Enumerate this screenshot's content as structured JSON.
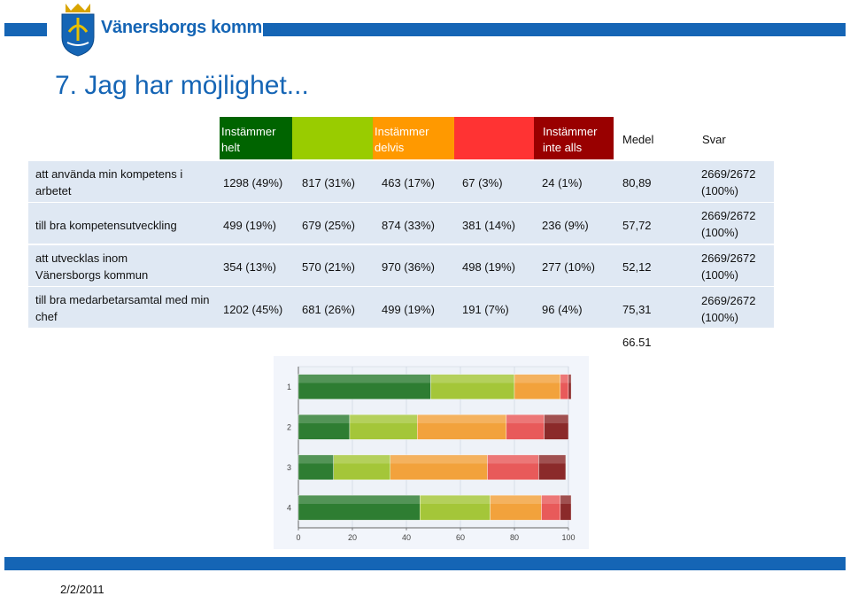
{
  "brand": "Vänersborgs kommun",
  "title": "7. Jag har möjlighet...",
  "table": {
    "headers": [
      {
        "label": "Instämmer helt",
        "color": "#006400"
      },
      {
        "label": "",
        "color": "#99cc00"
      },
      {
        "label": "Instämmer delvis",
        "color": "#ff9900"
      },
      {
        "label": "",
        "color": "#ff3333"
      },
      {
        "label": "Instämmer inte alls",
        "color": "#990000"
      }
    ],
    "medel_label": "Medel",
    "svar_label": "Svar",
    "rows": [
      {
        "label": "att använda min kompetens i arbetet",
        "cells": [
          "1298 (49%)",
          "817 (31%)",
          "463 (17%)",
          "67 (3%)",
          "24 (1%)"
        ],
        "medel": "80,89",
        "svar": "2669/2672 (100%)"
      },
      {
        "label": "till bra kompetensutveckling",
        "cells": [
          "499 (19%)",
          "679 (25%)",
          "874 (33%)",
          "381 (14%)",
          "236 (9%)"
        ],
        "medel": "57,72",
        "svar": "2669/2672 (100%)"
      },
      {
        "label": "att utvecklas inom Vänersborgs kommun",
        "cells": [
          "354 (13%)",
          "570 (21%)",
          "970 (36%)",
          "498 (19%)",
          "277 (10%)"
        ],
        "medel": "52,12",
        "svar": "2669/2672 (100%)"
      },
      {
        "label": "till bra medarbetarsamtal med min chef",
        "cells": [
          "1202 (45%)",
          "681 (26%)",
          "499 (19%)",
          "191 (7%)",
          "96 (4%)"
        ],
        "medel": "75,31",
        "svar": "2669/2672 (100%)"
      }
    ],
    "total_medel": "66.51"
  },
  "chart_data": {
    "type": "bar",
    "orientation": "horizontal",
    "stacked": true,
    "categories": [
      "1",
      "2",
      "3",
      "4"
    ],
    "series": [
      {
        "values": [
          49,
          19,
          13,
          45
        ],
        "color": "#2e7d32"
      },
      {
        "values": [
          31,
          25,
          21,
          26
        ],
        "color": "#a4c639"
      },
      {
        "values": [
          17,
          33,
          36,
          19
        ],
        "color": "#f2a23c"
      },
      {
        "values": [
          3,
          14,
          19,
          7
        ],
        "color": "#e85a5a"
      },
      {
        "values": [
          1,
          9,
          10,
          4
        ],
        "color": "#8b2a2a"
      }
    ],
    "xlim": [
      0,
      100
    ],
    "xticks": [
      0,
      20,
      40,
      60,
      80,
      100
    ],
    "grid": true
  },
  "date": "2/2/2011"
}
